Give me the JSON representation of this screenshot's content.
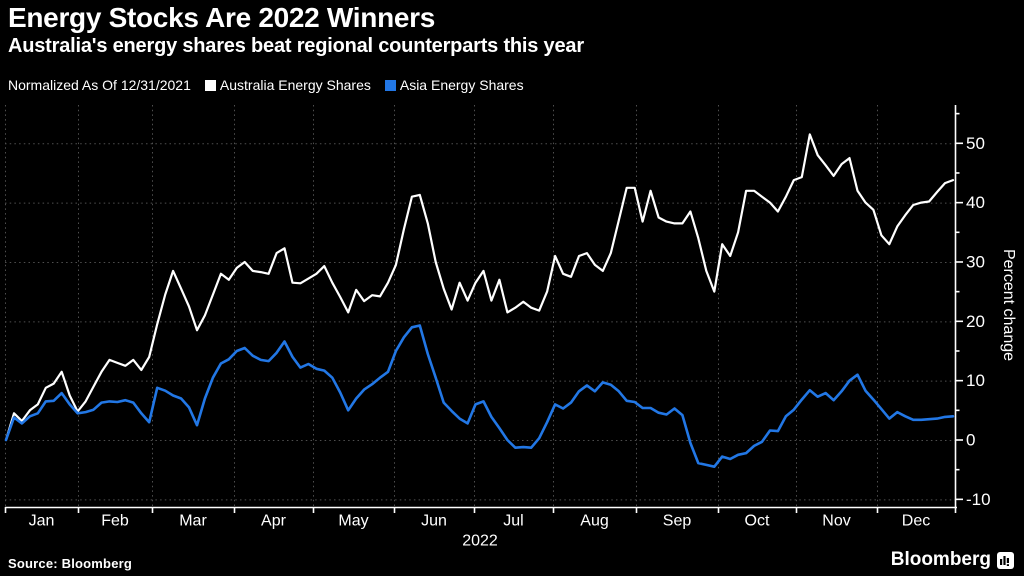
{
  "page": {
    "colors": {
      "background": "#000000",
      "text": "#ffffff",
      "grid": "#4f4f4f",
      "axis": "#ffffff",
      "australia_line": "#ffffff",
      "asia_line": "#2277e5"
    }
  },
  "header": {
    "title": "Energy Stocks Are 2022 Winners",
    "subtitle": "Australia's energy shares beat regional counterparts this year"
  },
  "legend": {
    "note": "Normalized As Of 12/31/2021",
    "items": [
      {
        "label": "Australia Energy Shares",
        "color": "#ffffff"
      },
      {
        "label": "Asia Energy Shares",
        "color": "#2277e5"
      }
    ]
  },
  "footer": {
    "source": "Source: Bloomberg",
    "brand": "Bloomberg",
    "brand_icon": "bloomberg-terminal-icon"
  },
  "chart_data": {
    "type": "line",
    "title": "Energy Stocks Are 2022 Winners",
    "subtitle": "Australia's energy shares beat regional counterparts this year",
    "note": "Normalized As Of 12/31/2021",
    "xlabel": "2022",
    "ylabel": "Percent change",
    "ylim": [
      -13,
      57
    ],
    "grid": true,
    "legend_position": "top",
    "x_categories": [
      "Jan",
      "Feb",
      "Mar",
      "Apr",
      "May",
      "Jun",
      "Jul",
      "Aug",
      "Sep",
      "Oct",
      "Nov",
      "Dec"
    ],
    "x_year_label": "2022",
    "y_major_ticks": [
      50,
      40,
      30,
      20,
      10,
      0,
      -10
    ],
    "y_minor_ticks": [
      55,
      45,
      35,
      25,
      15,
      5,
      -5
    ],
    "x_units": "evenly sampled Jan 1 to Dec 31 2022, percent change vs 12/31/2021",
    "series": [
      {
        "name": "Australia Energy Shares",
        "color": "#ffffff",
        "values": [
          0,
          4.5,
          3.2,
          5.0,
          6.0,
          8.8,
          9.5,
          11.5,
          7.5,
          4.8,
          6.5,
          9.0,
          11.5,
          13.5,
          13.0,
          12.5,
          13.5,
          11.8,
          14.0,
          19.5,
          24.5,
          28.5,
          25.5,
          22.5,
          18.5,
          21.0,
          24.5,
          28.0,
          27.0,
          29.0,
          30.0,
          28.5,
          28.3,
          28.0,
          31.5,
          32.3,
          26.5,
          26.4,
          27.2,
          28.0,
          29.3,
          26.5,
          24.1,
          21.5,
          25.3,
          23.4,
          24.4,
          24.2,
          26.5,
          29.5,
          35.5,
          41.0,
          41.3,
          36.5,
          30.0,
          25.5,
          22.0,
          26.5,
          23.5,
          26.5,
          28.5,
          23.5,
          27.0,
          21.5,
          22.3,
          23.3,
          22.3,
          21.8,
          25.0,
          31.0,
          28.0,
          27.5,
          31.0,
          31.5,
          29.5,
          28.5,
          31.5,
          37.0,
          42.5,
          42.5,
          36.8,
          42.0,
          37.5,
          36.8,
          36.5,
          36.5,
          38.5,
          34.0,
          28.5,
          25.0,
          33.0,
          31.0,
          35.0,
          42.0,
          42.0,
          41.0,
          40.0,
          38.5,
          41.0,
          43.8,
          44.3,
          51.5,
          48.0,
          46.3,
          44.5,
          46.5,
          47.5,
          42.0,
          40.0,
          38.8,
          34.5,
          33.0,
          36.0,
          37.9,
          39.6,
          40.0,
          40.2,
          41.8,
          43.3,
          43.8
        ]
      },
      {
        "name": "Asia Energy Shares",
        "color": "#2277e5",
        "values": [
          0,
          3.8,
          2.8,
          4.0,
          4.5,
          6.5,
          6.6,
          7.9,
          6.0,
          4.5,
          4.7,
          5.1,
          6.3,
          6.5,
          6.4,
          6.7,
          6.3,
          4.5,
          3.0,
          8.8,
          8.3,
          7.5,
          7.0,
          5.5,
          2.5,
          7.0,
          10.5,
          12.9,
          13.6,
          15.0,
          15.5,
          14.2,
          13.5,
          13.3,
          14.7,
          16.6,
          14.0,
          12.2,
          12.8,
          12.0,
          11.7,
          10.5,
          8.0,
          5.0,
          7.0,
          8.5,
          9.4,
          10.5,
          11.5,
          15.0,
          17.3,
          19.0,
          19.3,
          14.5,
          10.5,
          6.3,
          4.9,
          3.6,
          2.8,
          6.0,
          6.5,
          3.9,
          2.0,
          0.0,
          -1.3,
          -1.2,
          -1.3,
          0.3,
          3.0,
          6.0,
          5.3,
          6.3,
          8.2,
          9.2,
          8.2,
          9.7,
          9.3,
          8.2,
          6.6,
          6.4,
          5.4,
          5.4,
          4.6,
          4.3,
          5.3,
          4.2,
          -0.5,
          -3.9,
          -4.2,
          -4.5,
          -2.8,
          -3.2,
          -2.5,
          -2.2,
          -1.0,
          -0.3,
          1.6,
          1.5,
          4.0,
          5.1,
          6.8,
          8.4,
          7.3,
          7.9,
          6.7,
          8.2,
          10.0,
          11.0,
          8.3,
          6.8,
          5.2,
          3.6,
          4.7,
          4.0,
          3.4,
          3.4,
          3.5,
          3.6,
          3.9,
          4.0
        ]
      }
    ]
  }
}
